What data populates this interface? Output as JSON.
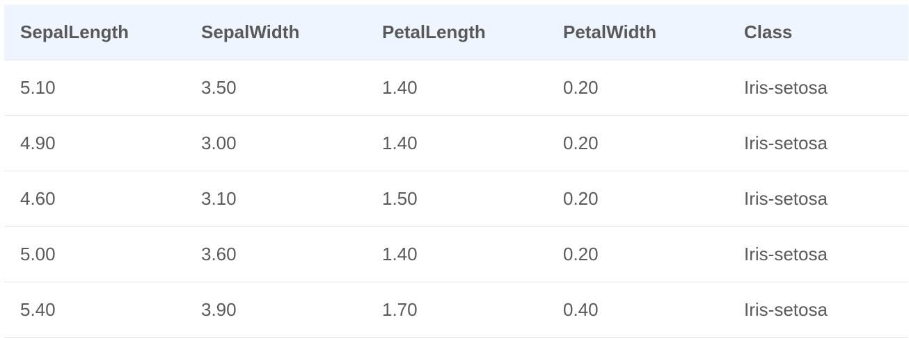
{
  "table": {
    "columns": [
      "SepalLength",
      "SepalWidth",
      "PetalLength",
      "PetalWidth",
      "Class"
    ],
    "rows": [
      [
        "5.10",
        "3.50",
        "1.40",
        "0.20",
        "Iris-setosa"
      ],
      [
        "4.90",
        "3.00",
        "1.40",
        "0.20",
        "Iris-setosa"
      ],
      [
        "4.60",
        "3.10",
        "1.50",
        "0.20",
        "Iris-setosa"
      ],
      [
        "5.00",
        "3.60",
        "1.40",
        "0.20",
        "Iris-setosa"
      ],
      [
        "5.40",
        "3.90",
        "1.70",
        "0.40",
        "Iris-setosa"
      ]
    ]
  },
  "colors": {
    "header_background": "#eef5ff",
    "row_divider": "#e6e6e6",
    "text": "#5a5a5a"
  }
}
